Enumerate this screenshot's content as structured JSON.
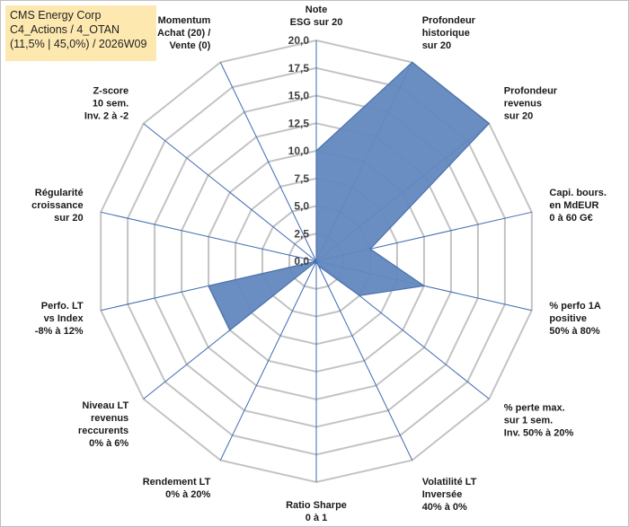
{
  "header": {
    "line1": "CMS Energy Corp",
    "line2": "C4_Actions / 4_OTAN",
    "line3": "(11,5% | 45,0%) / 2026W09"
  },
  "colors": {
    "fill": "#6288bf",
    "stroke": "#4a72ad",
    "grid": "#c3c3c3",
    "spoke": "#3f69b0",
    "header_bg": "#fde9b0"
  },
  "chart_data": {
    "type": "radar",
    "range": [
      0,
      20
    ],
    "tick_step": 2.5,
    "tick_labels": [
      "0,0",
      "2,5",
      "5,0",
      "7,5",
      "10,0",
      "12,5",
      "15,0",
      "17,5",
      "20,0"
    ],
    "axes": [
      {
        "label": [
          "Note",
          "ESG sur 20"
        ],
        "value": 10
      },
      {
        "label": [
          "Profondeur",
          "historique",
          "sur 20"
        ],
        "value": 20
      },
      {
        "label": [
          "Profondeur",
          "revenus",
          "sur 20"
        ],
        "value": 20
      },
      {
        "label": [
          "Capi. bours.",
          "en MdEUR",
          "0 à 60 G€"
        ],
        "value": 5
      },
      {
        "label": [
          "% perfo 1A",
          "positive",
          "50% à 80%"
        ],
        "value": 10
      },
      {
        "label": [
          "% perte max.",
          "sur 1 sem.",
          "Inv. 50% à 20%"
        ],
        "value": 5
      },
      {
        "label": [
          "Volatilité LT",
          "Inversée",
          "40% à 0%"
        ],
        "value": 0.5
      },
      {
        "label": [
          "Ratio Sharpe",
          "0 à 1"
        ],
        "value": 0
      },
      {
        "label": [
          "Rendement LT",
          "0% à 20%"
        ],
        "value": 0
      },
      {
        "label": [
          "Niveau LT",
          "revenus",
          "reccurents",
          "0% à 6%"
        ],
        "value": 10
      },
      {
        "label": [
          "Perfo. LT",
          "vs Index",
          "-8% à 12%"
        ],
        "value": 10
      },
      {
        "label": [
          "Régularité",
          "croissance",
          "sur 20"
        ],
        "value": 0
      },
      {
        "label": [
          "Z-score",
          "10 sem.",
          "Inv. 2 à -2"
        ],
        "value": 0
      },
      {
        "label": [
          "Momentum",
          "Achat (20) /",
          "Vente (0)"
        ],
        "value": 0
      }
    ]
  }
}
